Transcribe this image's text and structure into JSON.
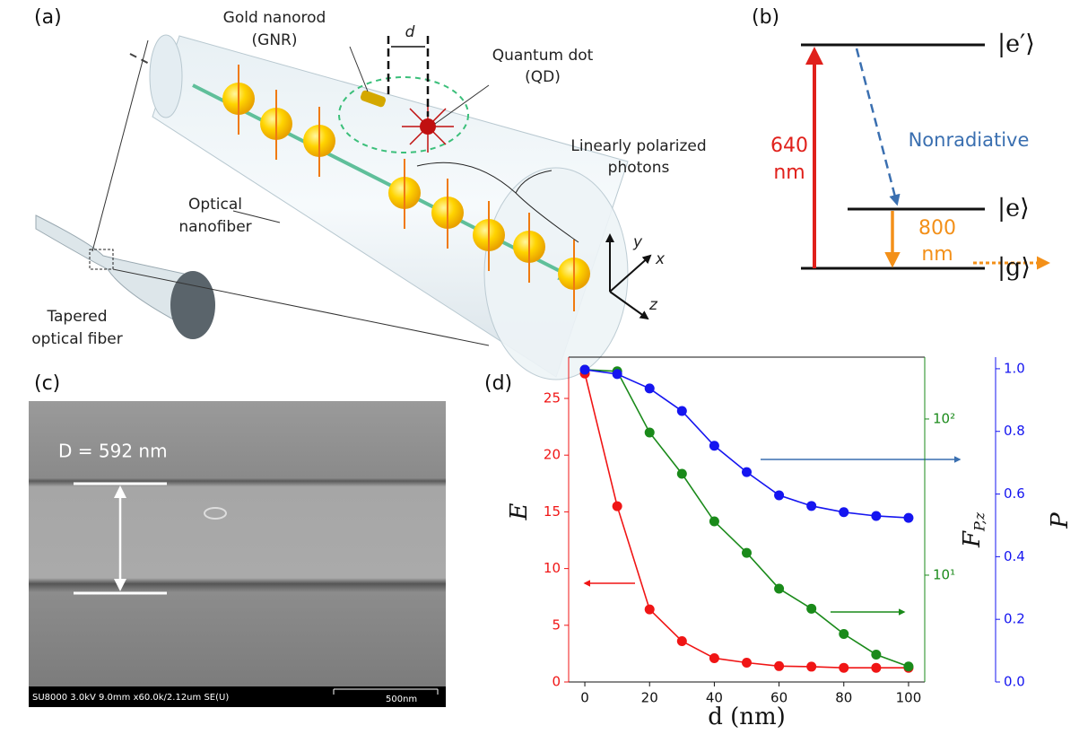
{
  "figure": {
    "panel_labels": [
      "(a)",
      "(b)",
      "(c)",
      "(d)"
    ]
  },
  "panel_a": {
    "gnr": "Gold nanorod",
    "gnr_abbr": "(GNR)",
    "distance": "d",
    "qd": "Quantum dot",
    "qd_abbr": "(QD)",
    "photons_1": "Linearly polarized",
    "photons_2": "photons",
    "nanofiber_1": "Optical",
    "nanofiber_2": "nanofiber",
    "tapered_1": "Tapered",
    "tapered_2": "optical fiber",
    "axis_y": "y",
    "axis_x": "x",
    "axis_z": "z"
  },
  "panel_b": {
    "excite_1": "640",
    "excite_2": "nm",
    "nonradiative": "Nonradiative",
    "emit_1": "800",
    "emit_2": "nm",
    "level_e_prime": "|e′⟩",
    "level_e": "|e⟩",
    "level_g": "|g⟩"
  },
  "panel_c": {
    "diameter": "D = 592 nm",
    "sem_info": "SU8000 3.0kV 9.0mm x60.0k/2.12um SE(U)",
    "scale": "500nm"
  },
  "chart_data": {
    "type": "line",
    "x_label": "d (nm)",
    "y_label": "E",
    "y2_label": "F",
    "y2_label_sub": "P,z",
    "y3_label": "P",
    "x": [
      0,
      10,
      20,
      30,
      40,
      50,
      60,
      70,
      80,
      90,
      100
    ],
    "xlim": [
      -5,
      105
    ],
    "xticks": [
      0,
      20,
      40,
      60,
      80,
      100
    ],
    "ylim": [
      0,
      28.64
    ],
    "yticks": [
      0,
      5,
      10,
      15,
      20,
      25
    ],
    "y2lim": [
      2.07,
      249
    ],
    "y2log": true,
    "y2ticks": [
      {
        "value": 10,
        "label": "10¹"
      },
      {
        "value": 100,
        "label": "10²"
      }
    ],
    "y3lim": [
      0,
      1.037
    ],
    "y3ticks": [
      {
        "value": 0,
        "label": "0.0"
      },
      0.2,
      0.4,
      0.6,
      0.8,
      {
        "value": 1,
        "label": "1.0"
      }
    ],
    "series": [
      {
        "name": "E",
        "color": "#f01515",
        "axis": "y",
        "values": [
          27.2,
          15.5,
          6.4,
          3.6,
          2.1,
          1.7,
          1.4,
          1.35,
          1.25,
          1.25,
          1.25
        ]
      },
      {
        "name": "F",
        "color": "#1a8a1a",
        "axis": "y2",
        "values": [
          207,
          202,
          82,
          44.6,
          22.1,
          13.9,
          8.2,
          6.1,
          4.2,
          3.1,
          2.6
        ]
      },
      {
        "name": "P",
        "color": "#1515f0",
        "axis": "y3",
        "values": [
          0.997,
          0.983,
          0.937,
          0.865,
          0.754,
          0.67,
          0.596,
          0.562,
          0.542,
          0.53,
          0.524
        ]
      }
    ]
  }
}
